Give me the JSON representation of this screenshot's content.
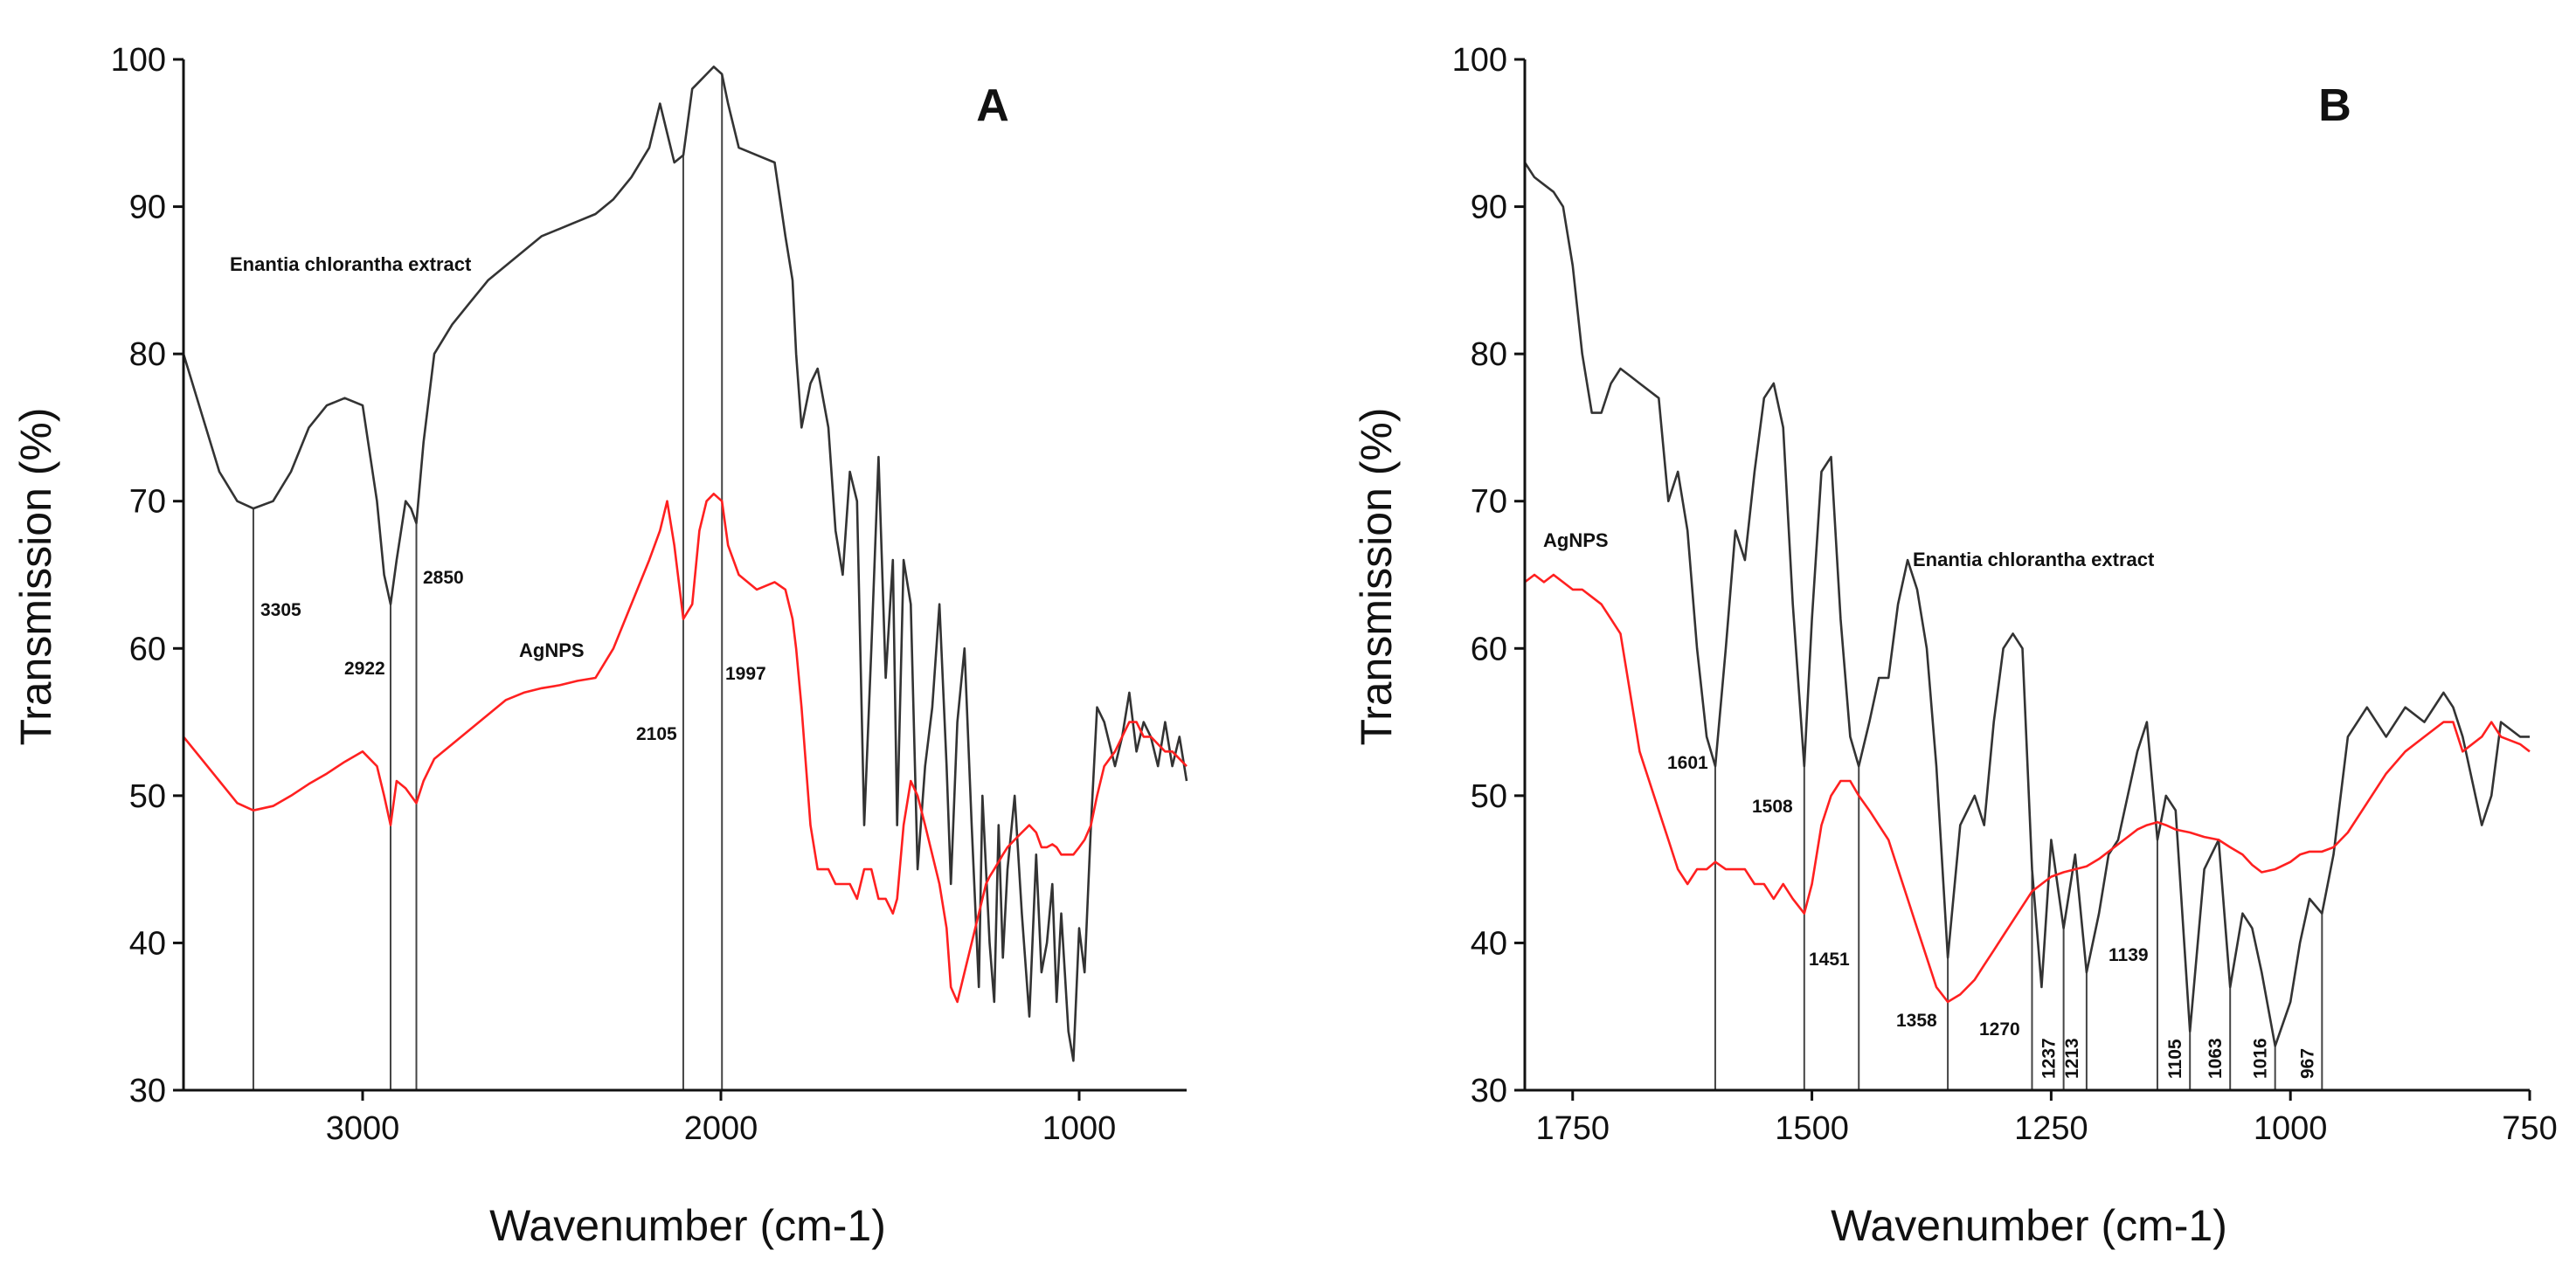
{
  "chart_data": [
    {
      "type": "line",
      "panel": "A",
      "xlabel": "Wavenumber (cm-1)",
      "ylabel": "Transmission (%)",
      "xlim": [
        3500,
        700
      ],
      "ylim": [
        30,
        100
      ],
      "xticks": [
        3000,
        2000,
        1000
      ],
      "yticks": [
        30,
        40,
        50,
        60,
        70,
        80,
        90,
        100
      ],
      "x_reversed": true,
      "series": [
        {
          "name": "Enantia chlorantha extract",
          "color": "#333333",
          "x": [
            3500,
            3450,
            3400,
            3350,
            3305,
            3250,
            3200,
            3150,
            3100,
            3050,
            3000,
            2960,
            2940,
            2922,
            2905,
            2880,
            2865,
            2850,
            2830,
            2800,
            2750,
            2700,
            2650,
            2600,
            2550,
            2500,
            2450,
            2400,
            2350,
            2300,
            2250,
            2200,
            2170,
            2150,
            2130,
            2105,
            2080,
            2060,
            2040,
            2020,
            1997,
            1980,
            1950,
            1900,
            1850,
            1820,
            1800,
            1790,
            1775,
            1750,
            1730,
            1700,
            1680,
            1660,
            1640,
            1620,
            1600,
            1580,
            1560,
            1540,
            1520,
            1508,
            1490,
            1470,
            1451,
            1430,
            1410,
            1390,
            1370,
            1358,
            1340,
            1320,
            1300,
            1280,
            1270,
            1260,
            1250,
            1237,
            1225,
            1213,
            1200,
            1180,
            1160,
            1139,
            1120,
            1105,
            1090,
            1075,
            1063,
            1050,
            1040,
            1030,
            1016,
            1000,
            985,
            967,
            950,
            930,
            900,
            880,
            860,
            840,
            820,
            800,
            780,
            760,
            740,
            720,
            700
          ],
          "y": [
            80,
            76,
            72,
            70,
            69.5,
            70,
            72,
            75,
            76.5,
            77,
            76.5,
            70,
            65,
            63,
            66,
            70,
            69.5,
            68.5,
            74,
            80,
            82,
            83.5,
            85,
            86,
            87,
            88,
            88.5,
            89,
            89.5,
            90.5,
            92,
            94,
            97,
            95,
            93,
            93.5,
            98,
            98.5,
            99,
            99.5,
            99,
            97,
            94,
            93.5,
            93,
            88,
            85,
            80,
            75,
            78,
            79,
            75,
            68,
            65,
            72,
            70,
            48,
            60,
            73,
            58,
            66,
            48,
            66,
            63,
            45,
            52,
            56,
            63,
            52,
            44,
            55,
            60,
            48,
            37,
            50,
            45,
            40,
            36,
            48,
            39,
            45,
            50,
            42,
            35,
            46,
            38,
            40,
            44,
            36,
            42,
            38,
            34,
            32,
            41,
            38,
            48,
            56,
            55,
            52,
            54,
            57,
            53,
            55,
            54,
            52,
            55,
            52,
            54,
            51
          ]
        },
        {
          "name": "AgNPS",
          "color": "#ff2020",
          "x": [
            3500,
            3450,
            3400,
            3350,
            3305,
            3250,
            3200,
            3150,
            3100,
            3050,
            3000,
            2960,
            2940,
            2922,
            2905,
            2880,
            2865,
            2850,
            2830,
            2800,
            2750,
            2700,
            2650,
            2600,
            2550,
            2500,
            2450,
            2400,
            2350,
            2300,
            2250,
            2200,
            2170,
            2150,
            2130,
            2105,
            2080,
            2060,
            2040,
            2020,
            1997,
            1980,
            1950,
            1900,
            1850,
            1820,
            1800,
            1790,
            1775,
            1750,
            1730,
            1700,
            1680,
            1660,
            1640,
            1620,
            1600,
            1580,
            1560,
            1540,
            1520,
            1508,
            1490,
            1470,
            1451,
            1430,
            1410,
            1390,
            1370,
            1358,
            1340,
            1320,
            1300,
            1280,
            1270,
            1260,
            1250,
            1237,
            1225,
            1213,
            1200,
            1180,
            1160,
            1139,
            1120,
            1105,
            1090,
            1075,
            1063,
            1050,
            1040,
            1030,
            1016,
            1000,
            985,
            967,
            950,
            930,
            900,
            880,
            860,
            840,
            820,
            800,
            780,
            760,
            740,
            720,
            700
          ],
          "y": [
            54,
            52.5,
            51,
            49.5,
            49,
            49.3,
            50,
            50.8,
            51.5,
            52.3,
            53,
            52,
            50,
            48,
            51,
            50.5,
            50,
            49.5,
            51,
            52.5,
            53.5,
            54.5,
            55.5,
            56.5,
            57,
            57.3,
            57.5,
            57.8,
            58,
            60,
            63,
            66,
            68,
            70,
            67,
            62,
            63,
            68,
            70,
            70.5,
            70,
            67,
            65,
            64,
            64.5,
            64,
            62,
            60,
            56,
            48,
            45,
            45,
            44,
            44,
            44,
            43,
            45,
            45,
            43,
            43,
            42,
            43,
            48,
            51,
            50,
            48,
            46,
            44,
            41,
            37,
            36,
            38,
            40,
            42,
            43,
            44,
            44.5,
            45,
            45.5,
            46,
            46.5,
            47,
            47.5,
            48,
            47.5,
            46.5,
            46.5,
            46.7,
            46.5,
            46,
            46,
            46,
            46,
            46.5,
            47,
            48,
            50,
            52,
            53,
            54,
            55,
            55,
            54,
            54,
            53.5,
            53,
            53,
            52.5,
            52
          ]
        }
      ],
      "annotations": [
        {
          "x": 3305,
          "label": "3305"
        },
        {
          "x": 2922,
          "label": "2922"
        },
        {
          "x": 2850,
          "label": "2850"
        },
        {
          "x": 2105,
          "label": "2105"
        },
        {
          "x": 1997,
          "label": "1997"
        }
      ]
    },
    {
      "type": "line",
      "panel": "B",
      "xlabel": "Wavenumber (cm-1)",
      "ylabel": "Transmission (%)",
      "xlim": [
        1800,
        750
      ],
      "ylim": [
        30,
        100
      ],
      "xticks": [
        1750,
        1500,
        1250,
        1000,
        750
      ],
      "yticks": [
        30,
        40,
        50,
        60,
        70,
        80,
        90,
        100
      ],
      "x_reversed": true,
      "series": [
        {
          "name": "Enantia chlorantha extract",
          "color": "#333333",
          "x": [
            1800,
            1790,
            1780,
            1770,
            1760,
            1750,
            1740,
            1730,
            1720,
            1710,
            1700,
            1690,
            1680,
            1660,
            1650,
            1640,
            1630,
            1620,
            1610,
            1601,
            1590,
            1580,
            1570,
            1560,
            1550,
            1540,
            1530,
            1520,
            1508,
            1500,
            1490,
            1480,
            1470,
            1460,
            1451,
            1440,
            1430,
            1420,
            1410,
            1400,
            1390,
            1380,
            1370,
            1358,
            1345,
            1330,
            1320,
            1310,
            1300,
            1290,
            1280,
            1270,
            1260,
            1250,
            1237,
            1225,
            1213,
            1200,
            1190,
            1180,
            1170,
            1160,
            1150,
            1139,
            1130,
            1120,
            1105,
            1090,
            1075,
            1063,
            1050,
            1040,
            1030,
            1016,
            1000,
            990,
            980,
            967,
            955,
            940,
            920,
            900,
            880,
            860,
            840,
            830,
            820,
            800,
            790,
            780,
            760,
            750
          ],
          "y": [
            93,
            92,
            91.5,
            91,
            90,
            86,
            80,
            76,
            76,
            78,
            79,
            78.5,
            78,
            77,
            70,
            72,
            68,
            60,
            54,
            52,
            60,
            68,
            66,
            72,
            77,
            78,
            75,
            63,
            52,
            62,
            72,
            73,
            62,
            54,
            52,
            55,
            58,
            58,
            63,
            66,
            64,
            60,
            52,
            39,
            48,
            50,
            48,
            55,
            60,
            61,
            60,
            45,
            37,
            47,
            41,
            46,
            38,
            42,
            46,
            47,
            50,
            53,
            55,
            47,
            50,
            49,
            34,
            45,
            47,
            37,
            42,
            41,
            38,
            33,
            36,
            40,
            43,
            42,
            46,
            54,
            56,
            54,
            56,
            55,
            57,
            56,
            54,
            48,
            50,
            55,
            54,
            54
          ]
        },
        {
          "name": "AgNPS",
          "color": "#ff2020",
          "x": [
            1800,
            1790,
            1780,
            1770,
            1760,
            1750,
            1740,
            1730,
            1720,
            1710,
            1700,
            1690,
            1680,
            1660,
            1650,
            1640,
            1630,
            1620,
            1610,
            1601,
            1590,
            1580,
            1570,
            1560,
            1550,
            1540,
            1530,
            1520,
            1508,
            1500,
            1490,
            1480,
            1470,
            1460,
            1451,
            1440,
            1430,
            1420,
            1410,
            1400,
            1390,
            1380,
            1370,
            1358,
            1345,
            1330,
            1320,
            1310,
            1300,
            1290,
            1280,
            1270,
            1260,
            1250,
            1237,
            1225,
            1213,
            1200,
            1190,
            1180,
            1170,
            1160,
            1150,
            1139,
            1130,
            1120,
            1105,
            1090,
            1075,
            1063,
            1050,
            1040,
            1030,
            1016,
            1000,
            990,
            980,
            967,
            955,
            940,
            920,
            900,
            880,
            860,
            840,
            830,
            820,
            800,
            790,
            780,
            760,
            750
          ],
          "y": [
            64.5,
            65,
            64.5,
            65,
            64.5,
            64,
            64,
            63.5,
            63,
            62,
            61,
            57,
            53,
            49,
            47,
            45,
            44,
            45,
            45,
            45.5,
            45,
            45,
            45,
            44,
            44,
            43,
            44,
            43,
            42,
            44,
            48,
            50,
            51,
            51,
            50,
            49,
            48,
            47,
            45,
            43,
            41,
            39,
            37,
            36,
            36.5,
            37.5,
            38.5,
            39.5,
            40.5,
            41.5,
            42.5,
            43.5,
            44,
            44.5,
            44.8,
            45,
            45.2,
            45.7,
            46.2,
            46.7,
            47.2,
            47.7,
            48,
            48.2,
            48,
            47.7,
            47.5,
            47.2,
            47,
            46.5,
            46,
            45.3,
            44.8,
            45,
            45.5,
            46,
            46.2,
            46.2,
            46.5,
            47.5,
            49.5,
            51.5,
            53,
            54,
            55,
            55,
            53,
            54,
            55,
            54,
            53.5,
            53
          ]
        }
      ],
      "annotations": [
        {
          "x": 1601,
          "label": "1601"
        },
        {
          "x": 1508,
          "label": "1508"
        },
        {
          "x": 1451,
          "label": "1451"
        },
        {
          "x": 1358,
          "label": "1358"
        },
        {
          "x": 1270,
          "label": "1270"
        },
        {
          "x": 1237,
          "label": "1237"
        },
        {
          "x": 1213,
          "label": "1213"
        },
        {
          "x": 1139,
          "label": "1139"
        },
        {
          "x": 1105,
          "label": "1105"
        },
        {
          "x": 1063,
          "label": "1063"
        },
        {
          "x": 1016,
          "label": "1016"
        },
        {
          "x": 967,
          "label": "967"
        }
      ]
    }
  ]
}
